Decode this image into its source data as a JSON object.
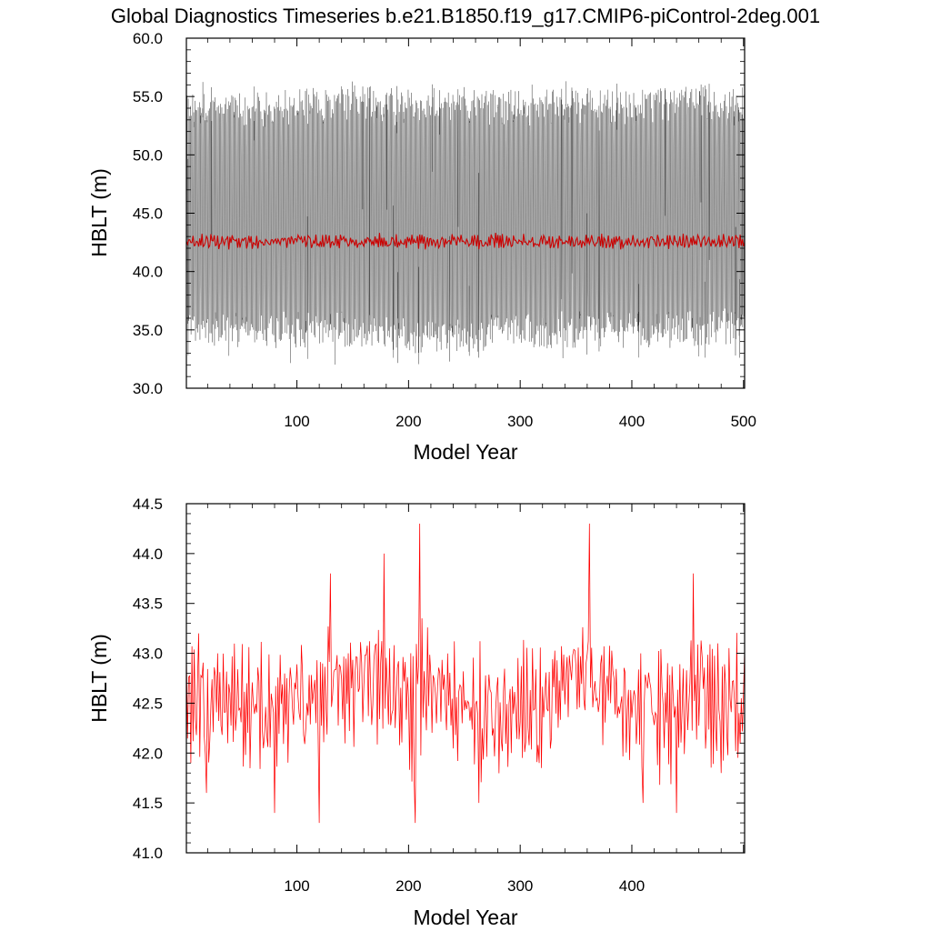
{
  "title": "Global Diagnostics Timeseries b.e21.B1850.f19_g17.CMIP6-piControl-2deg.001",
  "chart_data": [
    {
      "type": "line",
      "ylabel": "HBLT (m)",
      "xlabel": "Model Year",
      "xlim": [
        1,
        501
      ],
      "ylim": [
        30,
        60
      ],
      "yticks": [
        "30.0",
        "35.0",
        "40.0",
        "45.0",
        "50.0",
        "55.0",
        "60.0"
      ],
      "xticks": [
        "100",
        "200",
        "300",
        "400",
        "500"
      ],
      "grid": false,
      "series": [
        {
          "kind": "monthly-envelope",
          "color": "#000000",
          "x": [
            1,
            50,
            100,
            150,
            200,
            250,
            300,
            350,
            400,
            450,
            501
          ],
          "upper": [
            54.0,
            53.8,
            54.0,
            54.5,
            54.0,
            54.3,
            54.0,
            54.2,
            54.0,
            54.5,
            54.0
          ],
          "lower": [
            35.5,
            35.0,
            35.0,
            35.0,
            34.5,
            34.5,
            35.0,
            35.0,
            35.0,
            35.0,
            35.5
          ],
          "upper_extreme": 56.5,
          "lower_extreme": 32.0
        },
        {
          "kind": "annual-mean",
          "color": "#cc0000",
          "x": [
            1,
            50,
            100,
            150,
            200,
            250,
            300,
            350,
            400,
            450,
            501
          ],
          "values": [
            42.6,
            42.5,
            42.6,
            42.7,
            42.6,
            42.5,
            42.6,
            42.7,
            42.5,
            42.7,
            42.5
          ]
        }
      ]
    },
    {
      "type": "line",
      "ylabel": "HBLT (m)",
      "xlabel": "Model Year",
      "xlim": [
        1,
        501
      ],
      "ylim": [
        41.0,
        44.5
      ],
      "yticks": [
        "41.0",
        "41.5",
        "42.0",
        "42.5",
        "43.0",
        "43.5",
        "44.0",
        "44.5"
      ],
      "xticks": [
        "100",
        "200",
        "300",
        "400"
      ],
      "grid": false,
      "series": [
        {
          "kind": "annual-mean",
          "color": "#ff0000",
          "x": [
            1,
            5,
            12,
            19,
            29,
            40,
            55,
            80,
            102,
            117,
            120,
            130,
            146,
            178,
            206,
            210,
            228,
            263,
            292,
            317,
            362,
            381,
            410,
            440,
            455,
            480,
            500
          ],
          "values": [
            43.0,
            41.9,
            43.2,
            41.6,
            43.0,
            42.6,
            42.7,
            41.4,
            42.4,
            42.3,
            41.3,
            43.8,
            43.0,
            44.0,
            41.3,
            44.3,
            42.8,
            41.5,
            42.0,
            41.9,
            44.3,
            42.5,
            41.5,
            41.4,
            43.8,
            41.8,
            42.6
          ]
        }
      ]
    }
  ]
}
